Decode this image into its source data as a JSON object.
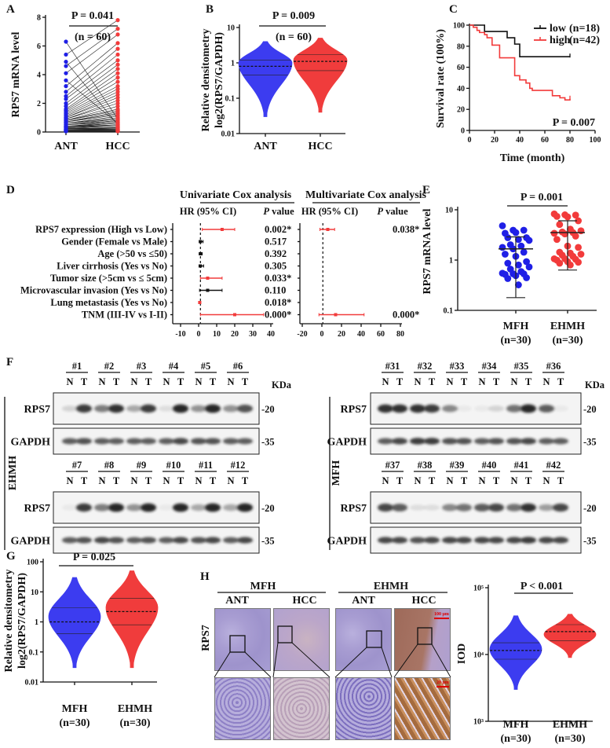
{
  "panels": {
    "A": "A",
    "B": "B",
    "C": "C",
    "D": "D",
    "E": "E",
    "F": "F",
    "G": "G",
    "H": "H"
  },
  "colors": {
    "blue": "#1f1fe6",
    "red": "#f23b3b",
    "black": "#111111",
    "blot": "#1a1a1a"
  },
  "chart_data": [
    {
      "id": "A",
      "type": "scatter",
      "title": "P = 0.041",
      "subtitle": "(n = 60)",
      "ylabel": "RPS7 mRNA level",
      "categories": [
        "ANT",
        "HCC"
      ],
      "ylim": [
        0,
        8
      ],
      "yticks": [
        0,
        2,
        4,
        6,
        8
      ],
      "paired": true,
      "series": [
        {
          "name": "ANT",
          "color": "#1f1fe6",
          "values": [
            6.3,
            5.4,
            4.9,
            4.6,
            4.1,
            3.6,
            3.2,
            2.8,
            2.5,
            2.3,
            2.0,
            1.8,
            1.6,
            1.5,
            1.4,
            1.3,
            1.2,
            1.1,
            1.0,
            1.0,
            0.9,
            0.9,
            0.8,
            0.8,
            0.8,
            0.7,
            0.7,
            0.7,
            0.6,
            0.6,
            0.6,
            0.5,
            0.5,
            0.5,
            0.5,
            0.4,
            0.4,
            0.4,
            0.4,
            0.35,
            0.3,
            0.3,
            0.3,
            0.3,
            0.25,
            0.25,
            0.2,
            0.2,
            0.2,
            0.2,
            0.15,
            0.15,
            0.15,
            0.1,
            0.1,
            0.1,
            0.1,
            0.08,
            0.05,
            0.05
          ]
        },
        {
          "name": "HCC",
          "color": "#f23b3b",
          "values": [
            0.9,
            7.8,
            0.5,
            7.2,
            6.8,
            0.6,
            6.2,
            5.8,
            5.4,
            5.0,
            4.7,
            4.4,
            4.1,
            3.8,
            3.5,
            3.2,
            3.0,
            2.8,
            2.6,
            2.4,
            2.2,
            2.0,
            1.8,
            1.6,
            1.5,
            1.4,
            1.3,
            1.2,
            1.1,
            1.0,
            0.9,
            0.9,
            0.8,
            0.8,
            0.7,
            0.7,
            0.6,
            0.6,
            0.5,
            0.5,
            0.5,
            0.4,
            0.4,
            0.4,
            0.3,
            0.3,
            0.3,
            0.3,
            0.25,
            0.2,
            0.2,
            0.2,
            0.15,
            0.15,
            0.1,
            0.1,
            0.1,
            0.08,
            0.05,
            0.05
          ]
        }
      ]
    },
    {
      "id": "B",
      "type": "violin",
      "title": "P = 0.009",
      "subtitle": "(n = 60)",
      "ylabel": [
        "Relative densitometry",
        "log2(RPS7/GAPDH)"
      ],
      "yscale": "log",
      "ylim": [
        0.01,
        10
      ],
      "yticks": [
        "0.01",
        "0.1",
        "1",
        "10"
      ],
      "categories": [
        "ANT",
        "HCC"
      ],
      "series": [
        {
          "name": "ANT",
          "color": "#3c3cf0",
          "min": 0.03,
          "q1": 0.45,
          "median": 0.8,
          "q3": 1.2,
          "max": 4,
          "peak": 1.0
        },
        {
          "name": "HCC",
          "color": "#f03c3c",
          "min": 0.04,
          "q1": 0.6,
          "median": 1.1,
          "q3": 1.7,
          "max": 5,
          "peak": 1.2
        }
      ]
    },
    {
      "id": "C",
      "type": "line",
      "step": true,
      "xlabel": "Time (month)",
      "ylabel": "Survival rate (100%)",
      "xlim": [
        0,
        100
      ],
      "ylim": [
        0,
        100
      ],
      "xticks": [
        0,
        20,
        40,
        60,
        80,
        100
      ],
      "yticks": [
        0,
        20,
        40,
        60,
        80,
        100
      ],
      "legend_position": "top-right",
      "annotation": "P = 0.007",
      "series": [
        {
          "name": "low",
          "n_label": "(n=18)",
          "color": "#111111",
          "points": [
            [
              0,
              100
            ],
            [
              12,
              94
            ],
            [
              30,
              88
            ],
            [
              36,
              82
            ],
            [
              40,
              70
            ],
            [
              80,
              70
            ]
          ]
        },
        {
          "name": "high",
          "n_label": "(n=42)",
          "color": "#f23b3b",
          "points": [
            [
              0,
              100
            ],
            [
              3,
              98
            ],
            [
              6,
              95
            ],
            [
              8,
              93
            ],
            [
              12,
              91
            ],
            [
              14,
              88
            ],
            [
              18,
              81
            ],
            [
              24,
              69
            ],
            [
              36,
              52
            ],
            [
              40,
              48
            ],
            [
              45,
              45
            ],
            [
              48,
              40
            ],
            [
              50,
              38
            ],
            [
              66,
              33
            ],
            [
              72,
              31
            ],
            [
              76,
              29
            ],
            [
              80,
              30
            ]
          ]
        }
      ]
    },
    {
      "id": "D",
      "type": "forest",
      "row_labels": [
        "RPS7 expression (High vs Low)",
        "Gender (Female vs Male)",
        "Age (>50 vs  ≤50)",
        "Liver cirrhosis (Yes vs No)",
        "Tumor size (>5cm vs ≤ 5cm)",
        "Microvascular invasion (Yes vs No)",
        "Lung metastasis (Yes vs No)",
        "TNM (III-IV vs I-II)"
      ],
      "univariate": {
        "title": "Univariate Cox analysis",
        "hr_header": "HR (95% CI)",
        "p_header_italic": "P",
        "p_header_rest": " value",
        "xlim": [
          -10,
          40
        ],
        "xticks": [
          -10,
          0,
          10,
          20,
          30,
          40
        ],
        "reference": 1,
        "rows": [
          {
            "hr": 13,
            "lo": 2,
            "hi": 20,
            "p": "0.002*",
            "sig": true
          },
          {
            "hr": 1,
            "lo": 0.3,
            "hi": 2.5,
            "p": "0.517",
            "sig": false
          },
          {
            "hr": 1,
            "lo": 0.3,
            "hi": 2,
            "p": "0.392",
            "sig": false
          },
          {
            "hr": 1,
            "lo": 0.2,
            "hi": 2.8,
            "p": "0.305",
            "sig": false
          },
          {
            "hr": 5,
            "lo": 1,
            "hi": 13,
            "p": "0.033*",
            "sig": true
          },
          {
            "hr": 5,
            "lo": 0.5,
            "hi": 13,
            "p": "0.110",
            "sig": false
          },
          {
            "hr": 0.6,
            "lo": 0,
            "hi": 1.2,
            "p": "0.018*",
            "sig": true
          },
          {
            "hr": 20,
            "lo": 1,
            "hi": 36,
            "p": "0.000*",
            "sig": true
          }
        ]
      },
      "multivariate": {
        "title": "Multivariate Cox analysis",
        "hr_header": "HR (95% CI)",
        "p_header_italic": "P",
        "p_header_rest": " value",
        "xlim": [
          -20,
          80
        ],
        "xticks": [
          -20,
          0,
          20,
          40,
          60,
          80
        ],
        "reference": 1,
        "rows": [
          {
            "hr": 6,
            "lo": -2,
            "hi": 13,
            "p": "0.038*",
            "sig": true
          },
          null,
          null,
          null,
          null,
          null,
          null,
          {
            "hr": 14,
            "lo": -3,
            "hi": 43,
            "p": "0.000*",
            "sig": true
          }
        ]
      }
    },
    {
      "id": "E",
      "type": "scatter",
      "title": "P = 0.001",
      "ylabel": "RPS7 mRNA level",
      "yscale": "log",
      "ylim": [
        0.1,
        10
      ],
      "yticks": [
        "0.1",
        "1",
        "10"
      ],
      "categories": [
        "MFH",
        "EHMH"
      ],
      "sublabels": [
        "(n=30)",
        "(n=30)"
      ],
      "series": [
        {
          "name": "MFH",
          "color": "#1f1fe6",
          "mean": 1.2,
          "sd_low": 0.085,
          "sd_high": 2.3,
          "values": [
            4.2,
            3.3,
            3.3,
            2.8,
            2.9,
            2.2,
            2.2,
            2.0,
            1.9,
            1.5,
            1.4,
            1.3,
            1.2,
            1.0,
            0.9,
            0.8,
            0.6,
            0.55,
            0.5,
            0.45,
            0.4,
            0.35,
            0.32,
            0.31,
            0.31,
            0.3,
            0.28,
            0.25,
            0.24,
            0.17
          ]
        },
        {
          "name": "EHMH",
          "color": "#f23b3b",
          "mean": 2.9,
          "sd_low": 0.38,
          "sd_high": 5.5,
          "values": [
            8,
            7.6,
            7.5,
            7.0,
            6.8,
            5.5,
            4.5,
            3.5,
            3.2,
            3.0,
            2.9,
            2.8,
            2.7,
            2.4,
            2.0,
            1.4,
            1.3,
            1.0,
            0.95,
            0.9,
            0.85,
            0.8,
            0.7,
            0.7,
            0.68,
            0.65,
            0.6,
            0.58,
            0.55,
            0.5
          ]
        }
      ]
    },
    {
      "id": "G",
      "type": "violin",
      "title": "P = 0.025",
      "ylabel": [
        "Relative densitometry",
        "log2(RPS7/GAPDH)"
      ],
      "yscale": "log",
      "ylim": [
        0.01,
        100
      ],
      "yticks": [
        "0.01",
        "0.1",
        "1",
        "10",
        "100"
      ],
      "categories": [
        "MFH",
        "EHMH"
      ],
      "sublabels": [
        "(n=30)",
        "(n=30)"
      ],
      "series": [
        {
          "name": "MFH",
          "color": "#3c3cf0",
          "min": 0.03,
          "q1": 0.4,
          "median": 1.0,
          "q3": 3,
          "max": 30,
          "peak": 1.5
        },
        {
          "name": "EHMH",
          "color": "#f03c3c",
          "min": 0.03,
          "q1": 0.8,
          "median": 2.2,
          "q3": 6,
          "max": 50,
          "peak": 3
        }
      ]
    },
    {
      "id": "H_IOD",
      "type": "violin",
      "title": "P < 0.001",
      "ylabel": "IOD",
      "yscale": "log",
      "ylim": [
        1000,
        100000
      ],
      "yticks": [
        "10³",
        "10⁴",
        "10⁵"
      ],
      "categories": [
        "MFH",
        "EHMH"
      ],
      "sublabels": [
        "(n=30)",
        "(n=30)"
      ],
      "series": [
        {
          "name": "MFH",
          "color": "#3c3cf0",
          "min": 3000,
          "q1": 8500,
          "median": 11500,
          "q3": 15000,
          "max": 38000,
          "peak": 12000
        },
        {
          "name": "EHMH",
          "color": "#f03c3c",
          "min": 9000,
          "q1": 16000,
          "median": 22000,
          "q3": 28000,
          "max": 40000,
          "peak": 20000
        }
      ]
    }
  ],
  "westerns": {
    "kda": "KDa",
    "marker_20": "-20",
    "marker_35": "-35",
    "lane_N": "N",
    "lane_T": "T",
    "left": {
      "group": "EHMH",
      "row_labels": [
        "RPS7",
        "GAPDH"
      ],
      "blocks": [
        {
          "samples": [
            "#1",
            "#2",
            "#3",
            "#4",
            "#5",
            "#6"
          ],
          "rps7": [
            0.15,
            0.85,
            0.55,
            0.9,
            0.35,
            0.85,
            0.1,
            0.95,
            0.45,
            0.95,
            0.45,
            0.75
          ],
          "gapdh": [
            0.7,
            0.75,
            0.7,
            0.7,
            0.7,
            0.7,
            0.7,
            0.8,
            0.75,
            0.75,
            0.7,
            0.7
          ]
        },
        {
          "samples": [
            "#7",
            "#8",
            "#9",
            "#10",
            "#11",
            "#12"
          ],
          "rps7": [
            0.05,
            0.85,
            0.55,
            0.95,
            0.45,
            0.95,
            0.05,
            0.95,
            0.35,
            0.95,
            0.35,
            0.95
          ],
          "gapdh": [
            0.7,
            0.75,
            0.8,
            0.75,
            0.7,
            0.75,
            0.7,
            0.8,
            0.75,
            0.8,
            0.7,
            0.8
          ]
        }
      ]
    },
    "right": {
      "group": "MFH",
      "row_labels": [
        "RPS7",
        "GAPDH"
      ],
      "blocks": [
        {
          "samples": [
            "#31",
            "#32",
            "#33",
            "#34",
            "#35",
            "#36"
          ],
          "rps7": [
            0.9,
            0.9,
            0.9,
            0.85,
            0.5,
            0.05,
            0.05,
            0.15,
            0.6,
            0.95,
            0.7,
            0.05
          ],
          "gapdh": [
            0.7,
            0.8,
            0.85,
            0.85,
            0.75,
            0.75,
            0.7,
            0.75,
            0.75,
            0.8,
            0.7,
            0.7
          ]
        },
        {
          "samples": [
            "#37",
            "#38",
            "#39",
            "#40",
            "#41",
            "#42"
          ],
          "rps7": [
            0.8,
            0.7,
            0.1,
            0.1,
            0.5,
            0.6,
            0.7,
            0.8,
            0.6,
            0.9,
            0.4,
            0.8
          ],
          "gapdh": [
            0.8,
            0.8,
            0.75,
            0.8,
            0.8,
            0.8,
            0.8,
            0.8,
            0.8,
            0.85,
            0.8,
            0.8
          ]
        }
      ]
    }
  },
  "ihc": {
    "groups": [
      "MFH",
      "EHMH"
    ],
    "columns": [
      "ANT",
      "HCC",
      "ANT",
      "HCC"
    ],
    "row_label": "RPS7",
    "scale_top": "100 μm",
    "scale_bottom": "20 μm"
  }
}
